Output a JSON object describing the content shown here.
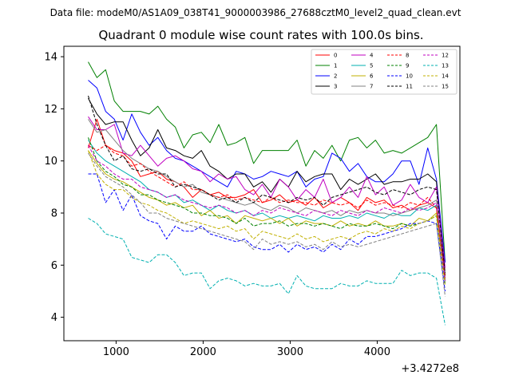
{
  "suptitle": "Data file: modeM0/AS1A09_038T41_9000003986_27688cztM0_level2_quad_clean.evt",
  "chart_data": {
    "type": "line",
    "title": "Quadrant 0 module wise count rates with 100.0s bins.",
    "xlabel": "",
    "ylabel": "",
    "offset_text": "+3.4272e8",
    "xlim": [
      400,
      4950
    ],
    "ylim": [
      3.1,
      14.4
    ],
    "xticks": [
      1000,
      2000,
      3000,
      4000
    ],
    "xtick_labels": [
      "1000",
      "2000",
      "3000",
      "4000"
    ],
    "yticks": [
      4,
      6,
      8,
      10,
      12,
      14
    ],
    "ytick_labels": [
      "4",
      "6",
      "8",
      "10",
      "12",
      "14"
    ],
    "legend_position": "top-right",
    "x": [
      680,
      780,
      880,
      980,
      1080,
      1180,
      1280,
      1380,
      1480,
      1580,
      1680,
      1780,
      1880,
      1980,
      2080,
      2180,
      2280,
      2380,
      2480,
      2580,
      2680,
      2780,
      2880,
      2980,
      3080,
      3180,
      3280,
      3380,
      3480,
      3580,
      3680,
      3780,
      3880,
      3980,
      4080,
      4180,
      4280,
      4380,
      4480,
      4580,
      4680,
      4780
    ],
    "series": [
      {
        "name": "0",
        "color": "#ff0000",
        "dash": "solid",
        "values": [
          10.5,
          11.6,
          10.6,
          10.4,
          10.3,
          10.0,
          9.4,
          9.5,
          9.6,
          9.3,
          9.2,
          9.0,
          8.6,
          8.9,
          8.7,
          8.8,
          8.6,
          8.6,
          8.7,
          8.9,
          8.4,
          8.5,
          8.7,
          8.4,
          8.5,
          8.3,
          8.6,
          8.2,
          8.4,
          8.6,
          8.4,
          8.1,
          8.6,
          8.4,
          8.5,
          8.2,
          8.3,
          8.1,
          8.3,
          8.4,
          8.2,
          5.6
        ]
      },
      {
        "name": "1",
        "color": "#008000",
        "dash": "solid",
        "values": [
          13.8,
          13.2,
          13.5,
          12.3,
          11.9,
          11.9,
          11.9,
          11.8,
          12.1,
          11.6,
          11.3,
          10.5,
          11.0,
          11.1,
          10.7,
          11.4,
          10.6,
          10.7,
          10.9,
          9.9,
          10.4,
          10.4,
          10.4,
          10.4,
          10.8,
          9.8,
          10.4,
          10.1,
          10.6,
          10.0,
          10.8,
          10.9,
          10.5,
          10.8,
          10.3,
          10.4,
          10.3,
          10.5,
          10.7,
          10.9,
          11.4,
          6.1
        ]
      },
      {
        "name": "2",
        "color": "#0000ff",
        "dash": "solid",
        "values": [
          13.1,
          12.8,
          11.9,
          11.6,
          10.8,
          11.8,
          11.1,
          10.6,
          10.9,
          10.4,
          10.1,
          10.0,
          9.8,
          9.6,
          9.4,
          9.2,
          9.0,
          9.6,
          9.5,
          9.3,
          9.4,
          9.6,
          9.5,
          9.4,
          9.6,
          9.0,
          9.3,
          9.4,
          10.3,
          10.1,
          9.6,
          9.9,
          9.4,
          9.2,
          9.2,
          9.5,
          10.0,
          10.0,
          9.1,
          10.5,
          9.3,
          6.1
        ]
      },
      {
        "name": "3",
        "color": "#000000",
        "dash": "solid",
        "values": [
          12.4,
          11.8,
          11.4,
          11.5,
          11.5,
          10.8,
          10.2,
          10.5,
          11.2,
          10.5,
          10.4,
          10.2,
          10.1,
          10.4,
          9.8,
          9.6,
          9.3,
          9.5,
          9.5,
          9.0,
          9.2,
          8.8,
          9.3,
          9.0,
          9.6,
          9.2,
          9.4,
          9.5,
          9.5,
          8.9,
          9.3,
          9.1,
          9.3,
          9.5,
          9.1,
          9.2,
          9.2,
          9.3,
          9.3,
          9.5,
          9.2,
          5.6
        ]
      },
      {
        "name": "4",
        "color": "#c000c0",
        "dash": "solid",
        "values": [
          11.7,
          11.2,
          11.2,
          11.4,
          10.3,
          10.2,
          10.6,
          10.2,
          9.8,
          10.1,
          10.2,
          10.0,
          9.7,
          9.6,
          9.2,
          9.5,
          9.3,
          9.4,
          8.9,
          8.7,
          9.1,
          8.6,
          9.3,
          9.0,
          8.5,
          8.9,
          8.6,
          9.3,
          8.4,
          8.6,
          9.0,
          8.6,
          9.4,
          8.7,
          9.0,
          8.3,
          8.5,
          9.1,
          8.6,
          8.4,
          9.0,
          5.9
        ]
      },
      {
        "name": "5",
        "color": "#00b0b0",
        "dash": "solid",
        "values": [
          10.8,
          10.3,
          10.0,
          9.8,
          9.6,
          9.4,
          9.2,
          8.9,
          8.8,
          8.6,
          8.7,
          8.4,
          8.5,
          8.3,
          8.1,
          8.3,
          8.1,
          8.0,
          8.1,
          7.9,
          8.0,
          7.8,
          7.9,
          7.8,
          7.9,
          7.8,
          7.7,
          7.9,
          7.8,
          7.8,
          7.9,
          7.8,
          8.0,
          7.9,
          7.8,
          8.0,
          7.9,
          7.9,
          8.2,
          8.1,
          8.3,
          5.4
        ]
      },
      {
        "name": "6",
        "color": "#c0b000",
        "dash": "solid",
        "values": [
          10.4,
          9.9,
          9.5,
          9.3,
          9.2,
          9.0,
          8.8,
          8.6,
          8.5,
          8.3,
          8.4,
          8.2,
          8.3,
          7.9,
          8.1,
          7.8,
          7.9,
          7.6,
          7.9,
          7.8,
          7.7,
          7.8,
          7.6,
          7.8,
          7.5,
          7.7,
          7.6,
          7.6,
          7.5,
          7.7,
          7.5,
          7.6,
          7.5,
          7.7,
          7.5,
          7.5,
          7.6,
          7.5,
          7.8,
          7.7,
          8.0,
          5.4
        ]
      },
      {
        "name": "7",
        "color": "#808080",
        "dash": "solid",
        "values": [
          11.6,
          11.1,
          11.2,
          10.8,
          10.4,
          10.1,
          9.9,
          9.7,
          9.6,
          9.4,
          9.2,
          9.0,
          9.1,
          8.8,
          8.7,
          8.6,
          8.5,
          8.4,
          8.3,
          8.4,
          8.2,
          8.1,
          8.3,
          8.2,
          8.0,
          8.2,
          8.1,
          8.0,
          8.1,
          7.9,
          8.1,
          8.0,
          8.1,
          8.0,
          8.0,
          7.9,
          8.0,
          8.1,
          8.2,
          8.3,
          8.5,
          5.5
        ]
      },
      {
        "name": "8",
        "color": "#ff0000",
        "dash": "dashed",
        "values": [
          10.6,
          10.4,
          10.6,
          10.3,
          10.2,
          9.8,
          9.9,
          9.6,
          9.4,
          9.2,
          9.0,
          9.2,
          8.9,
          8.9,
          8.7,
          8.6,
          8.7,
          8.5,
          8.6,
          8.5,
          8.4,
          8.6,
          8.4,
          8.5,
          8.4,
          8.4,
          8.3,
          8.5,
          8.4,
          8.3,
          8.4,
          8.2,
          8.5,
          8.3,
          8.4,
          8.3,
          8.2,
          8.4,
          8.3,
          8.6,
          8.2,
          5.5
        ]
      },
      {
        "name": "9",
        "color": "#008000",
        "dash": "dashed",
        "values": [
          10.9,
          10.0,
          9.6,
          9.4,
          9.1,
          9.0,
          8.7,
          8.7,
          8.5,
          8.4,
          8.3,
          8.2,
          8.0,
          8.0,
          7.9,
          7.9,
          7.8,
          7.6,
          7.8,
          7.5,
          7.6,
          7.6,
          7.7,
          7.5,
          7.6,
          7.6,
          7.5,
          7.6,
          7.5,
          7.4,
          7.6,
          7.5,
          7.5,
          7.6,
          7.5,
          7.4,
          7.6,
          7.5,
          7.6,
          7.7,
          7.9,
          5.3
        ]
      },
      {
        "name": "10",
        "color": "#0000ff",
        "dash": "dashed",
        "values": [
          9.5,
          9.5,
          8.4,
          8.9,
          8.1,
          8.7,
          7.9,
          7.7,
          7.6,
          7.0,
          7.5,
          7.3,
          7.3,
          7.5,
          7.2,
          7.1,
          7.0,
          6.9,
          7.0,
          6.7,
          6.6,
          6.6,
          6.8,
          6.5,
          6.8,
          6.6,
          6.7,
          6.5,
          6.8,
          6.6,
          7.0,
          6.8,
          7.1,
          7.1,
          7.2,
          7.3,
          7.4,
          7.6,
          7.6,
          7.7,
          7.6,
          5.0
        ]
      },
      {
        "name": "11",
        "color": "#000000",
        "dash": "dashed",
        "values": [
          12.5,
          11.4,
          10.6,
          10.0,
          10.2,
          9.7,
          9.6,
          9.7,
          9.5,
          9.5,
          9.0,
          9.1,
          9.0,
          8.9,
          8.7,
          8.5,
          8.6,
          8.4,
          8.6,
          8.4,
          8.7,
          8.6,
          8.5,
          8.4,
          8.6,
          8.5,
          8.6,
          8.3,
          8.6,
          8.7,
          8.8,
          8.9,
          9.0,
          8.8,
          8.7,
          8.9,
          8.8,
          8.7,
          8.9,
          9.0,
          8.9,
          5.7
        ]
      },
      {
        "name": "12",
        "color": "#c000c0",
        "dash": "dashed",
        "values": [
          10.6,
          10.0,
          9.8,
          9.5,
          9.3,
          9.3,
          9.0,
          8.9,
          8.8,
          8.6,
          8.7,
          8.5,
          8.4,
          8.3,
          8.2,
          8.3,
          8.2,
          8.0,
          8.1,
          7.9,
          8.1,
          8.0,
          8.2,
          8.1,
          8.0,
          7.9,
          8.1,
          8.0,
          7.9,
          8.1,
          8.0,
          7.9,
          8.1,
          8.0,
          8.2,
          8.1,
          8.0,
          8.2,
          8.1,
          8.2,
          8.4,
          5.4
        ]
      },
      {
        "name": "13",
        "color": "#00b0b0",
        "dash": "dashed",
        "values": [
          7.8,
          7.6,
          7.2,
          7.1,
          7.0,
          6.3,
          6.2,
          6.1,
          6.4,
          6.4,
          6.1,
          5.6,
          5.7,
          5.7,
          5.1,
          5.4,
          5.5,
          5.4,
          5.2,
          5.3,
          5.2,
          5.2,
          5.3,
          4.9,
          5.6,
          5.2,
          5.1,
          5.1,
          5.1,
          5.3,
          5.2,
          5.2,
          5.4,
          5.3,
          5.3,
          5.3,
          5.8,
          5.6,
          5.7,
          5.7,
          5.5,
          3.7
        ]
      },
      {
        "name": "14",
        "color": "#c0b000",
        "dash": "dashed",
        "values": [
          10.4,
          9.5,
          9.1,
          8.9,
          8.9,
          8.6,
          8.4,
          8.3,
          8.1,
          8.0,
          7.8,
          7.6,
          7.7,
          7.6,
          7.5,
          7.4,
          7.5,
          7.3,
          7.4,
          7.0,
          7.3,
          7.2,
          7.1,
          7.0,
          7.2,
          7.0,
          7.1,
          6.9,
          7.0,
          7.1,
          7.0,
          7.2,
          7.3,
          7.2,
          7.4,
          7.3,
          7.5,
          7.4,
          7.6,
          7.7,
          7.9,
          5.2
        ]
      },
      {
        "name": "15",
        "color": "#808080",
        "dash": "dashed",
        "values": [
          10.3,
          9.8,
          9.4,
          9.2,
          9.0,
          8.7,
          8.4,
          8.0,
          8.0,
          7.8,
          7.7,
          7.6,
          7.5,
          7.4,
          7.3,
          7.2,
          7.1,
          7.0,
          6.9,
          6.6,
          7.0,
          6.8,
          6.9,
          6.8,
          6.9,
          6.7,
          6.8,
          6.6,
          6.9,
          6.7,
          6.8,
          6.7,
          6.8,
          6.9,
          7.0,
          7.1,
          7.2,
          7.3,
          7.4,
          7.5,
          7.6,
          4.8
        ]
      }
    ]
  }
}
